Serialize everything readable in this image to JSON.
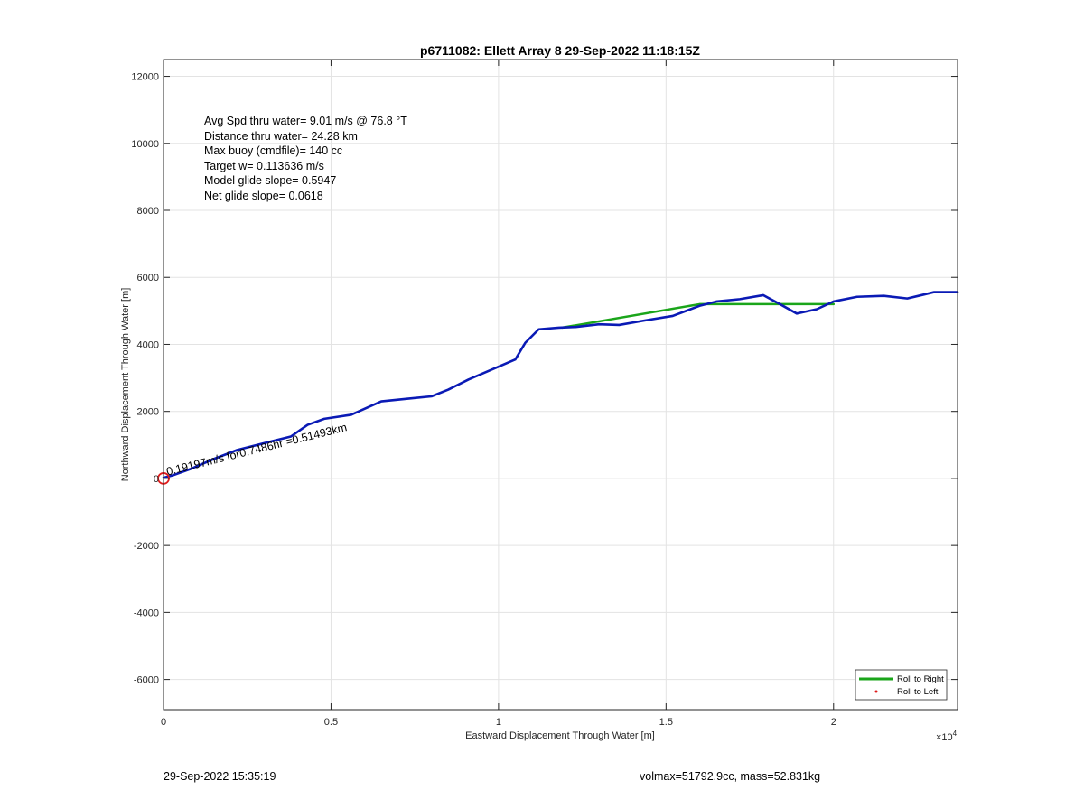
{
  "chart_data": {
    "type": "line",
    "title": "p6711082: Ellett Array 8 29-Sep-2022 11:18:15Z",
    "xlabel": "Eastward Displacement Through Water [m]",
    "ylabel": "Northward Displacement Through Water [m]",
    "x_exponent_label": "×10",
    "x_exponent_power": "4",
    "xlim": [
      0,
      23700
    ],
    "ylim": [
      -6900,
      12500
    ],
    "x_ticks": [
      0,
      5000,
      10000,
      15000,
      20000
    ],
    "x_tick_labels": [
      "0",
      "0.5",
      "1",
      "1.5",
      "2"
    ],
    "y_ticks": [
      -6000,
      -4000,
      -2000,
      0,
      2000,
      4000,
      6000,
      8000,
      10000,
      12000
    ],
    "y_tick_labels": [
      "-6000",
      "-4000",
      "-2000",
      "0",
      "2000",
      "4000",
      "6000",
      "8000",
      "10000",
      "12000"
    ],
    "grid": true,
    "legend_position": "bottom-right",
    "legend": [
      {
        "label": "Roll to Right",
        "color": "#1aa51a",
        "marker": "line"
      },
      {
        "label": "Roll to Left",
        "color": "#e01b1b",
        "marker": "dot"
      }
    ],
    "series": [
      {
        "color": "#1aa51a",
        "x": [
          11900,
          16000,
          18300,
          20000
        ],
        "y": [
          4500,
          5200,
          5200,
          5200
        ]
      },
      {
        "color": "#0a1ab5",
        "x": [
          0,
          300,
          800,
          1500,
          2200,
          3000,
          3800,
          4300,
          4800,
          5600,
          6500,
          7300,
          8000,
          8500,
          9100,
          9800,
          10500,
          10800,
          11200,
          11800,
          12300,
          13000,
          13600,
          14400,
          15200,
          16000,
          16500,
          17200,
          17900,
          18400,
          18900,
          19500,
          20000,
          20700,
          21500,
          22200,
          23000,
          23700
        ],
        "y": [
          20,
          100,
          280,
          580,
          850,
          1050,
          1250,
          1600,
          1780,
          1900,
          2300,
          2380,
          2450,
          2650,
          2950,
          3250,
          3550,
          4050,
          4450,
          4500,
          4520,
          4600,
          4580,
          4720,
          4850,
          5150,
          5280,
          5350,
          5470,
          5200,
          4920,
          5050,
          5280,
          5420,
          5450,
          5370,
          5560,
          5560
        ]
      }
    ],
    "start_marker": {
      "x": 0,
      "y": 0,
      "color": "#e01b1b"
    },
    "annotation": {
      "text": "0.19197m/s for0.7486hr =0.51493km",
      "x": 120,
      "y": 90,
      "angle": -14
    },
    "info_lines": [
      "Avg Spd thru water=  9.01 m/s @  76.8 °T",
      "Distance thru water= 24.28 km",
      "Max buoy (cmdfile)= 140 cc",
      "Target w= 0.113636 m/s",
      "Model glide slope= 0.5947",
      "Net glide slope= 0.0618"
    ]
  },
  "footer": {
    "left": "29-Sep-2022 15:35:19",
    "right": "volmax=51792.9cc, mass=52.831kg"
  }
}
